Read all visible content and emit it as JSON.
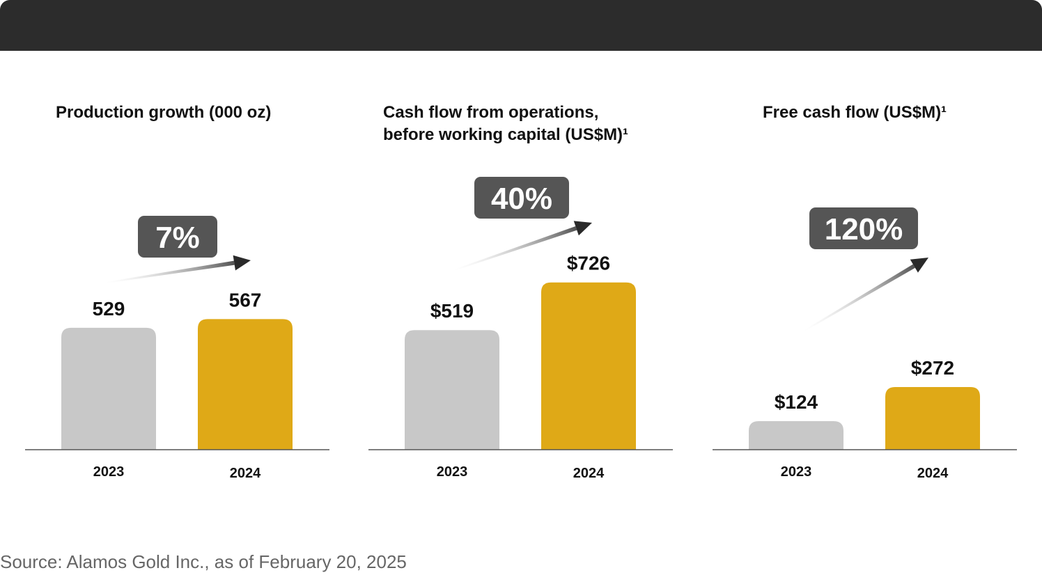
{
  "colors": {
    "bar_2023": "#c8c8c8",
    "bar_2024": "#dfa917",
    "badge": "#555555",
    "header": "#2c2c2c",
    "arrow": "#2a2a2a"
  },
  "chart_data": [
    {
      "type": "bar",
      "title_lines": [
        "Production growth (000 oz)"
      ],
      "categories": [
        "2023",
        "2024"
      ],
      "values": [
        529,
        567
      ],
      "value_labels": [
        "529",
        "567"
      ],
      "growth_label": "7%",
      "ylim": [
        0,
        1000
      ]
    },
    {
      "type": "bar",
      "title_lines": [
        "Cash flow from operations,",
        "before working capital (US$M)¹"
      ],
      "categories": [
        "2023",
        "2024"
      ],
      "values": [
        519,
        726
      ],
      "value_labels": [
        "$519",
        "$726"
      ],
      "growth_label": "40%",
      "ylim": [
        0,
        1000
      ]
    },
    {
      "type": "bar",
      "title_lines": [
        "Free cash flow (US$M)¹"
      ],
      "categories": [
        "2023",
        "2024"
      ],
      "values": [
        124,
        272
      ],
      "value_labels": [
        "$124",
        "$272"
      ],
      "growth_label": "120%",
      "ylim": [
        0,
        1000
      ]
    }
  ],
  "footer": {
    "source": "Source: Alamos Gold Inc., as of February 20, 2025"
  }
}
